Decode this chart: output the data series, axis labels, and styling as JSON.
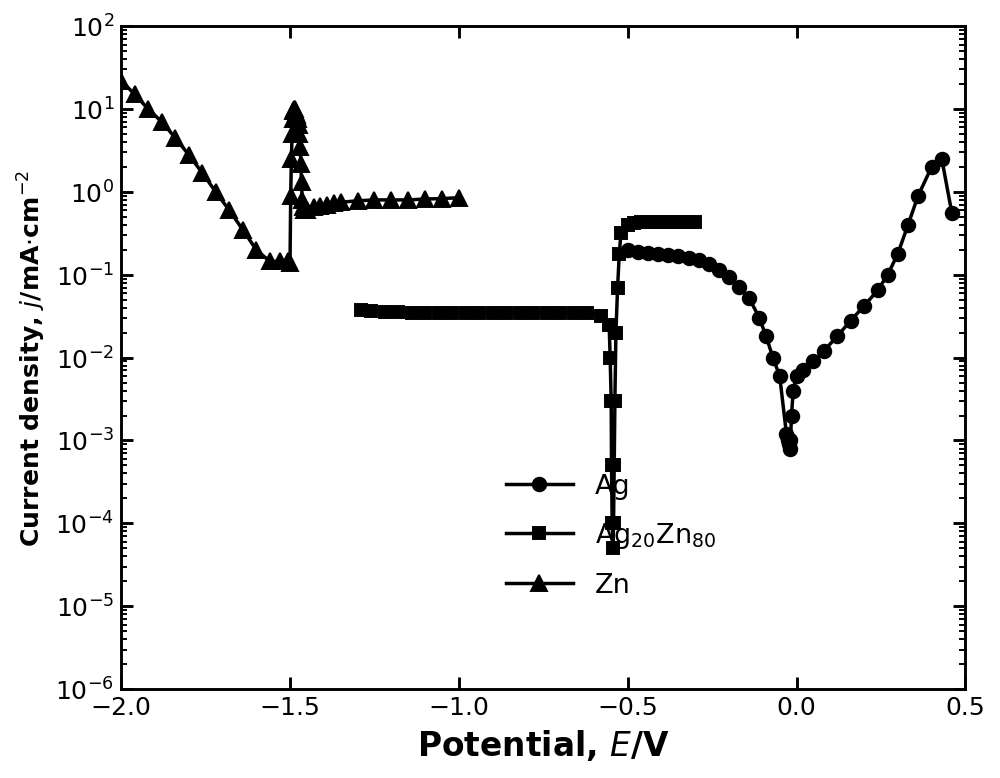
{
  "xlabel": "Potential, $\\bm{E}$/V",
  "ylabel": "Current density, $j$/mA·cm$^{-2}$",
  "xlim": [
    -2.0,
    0.5
  ],
  "ylim_log": [
    1e-06,
    100.0
  ],
  "xticks": [
    -2.0,
    -1.5,
    -1.0,
    -0.5,
    0.0,
    0.5
  ],
  "Ag_x": [
    -0.5,
    -0.47,
    -0.44,
    -0.41,
    -0.38,
    -0.35,
    -0.32,
    -0.29,
    -0.26,
    -0.23,
    -0.2,
    -0.17,
    -0.14,
    -0.11,
    -0.09,
    -0.07,
    -0.05,
    -0.03,
    -0.025,
    -0.022,
    -0.02,
    -0.018,
    -0.015,
    -0.01,
    0.0,
    0.02,
    0.05,
    0.08,
    0.12,
    0.16,
    0.2,
    0.24,
    0.27,
    0.3,
    0.33,
    0.36,
    0.4,
    0.43,
    0.46
  ],
  "Ag_y": [
    0.2,
    0.19,
    0.185,
    0.18,
    0.175,
    0.17,
    0.16,
    0.15,
    0.135,
    0.115,
    0.095,
    0.072,
    0.052,
    0.03,
    0.018,
    0.01,
    0.006,
    0.0012,
    0.001,
    0.0009,
    0.0008,
    0.001,
    0.002,
    0.004,
    0.006,
    0.007,
    0.009,
    0.012,
    0.018,
    0.028,
    0.042,
    0.065,
    0.1,
    0.18,
    0.4,
    0.9,
    2.0,
    2.5,
    0.55
  ],
  "AgZn_x": [
    -1.29,
    -1.26,
    -1.22,
    -1.18,
    -1.14,
    -1.1,
    -1.06,
    -1.02,
    -0.98,
    -0.94,
    -0.9,
    -0.86,
    -0.82,
    -0.78,
    -0.74,
    -0.7,
    -0.66,
    -0.62,
    -0.58,
    -0.555,
    -0.552,
    -0.549,
    -0.548,
    -0.546,
    -0.544,
    -0.542,
    -0.54,
    -0.538,
    -0.535,
    -0.53,
    -0.525,
    -0.52,
    -0.5,
    -0.48,
    -0.46,
    -0.44,
    -0.42,
    -0.4,
    -0.38,
    -0.36,
    -0.34,
    -0.32,
    -0.3
  ],
  "AgZn_y": [
    0.038,
    0.037,
    0.036,
    0.036,
    0.035,
    0.035,
    0.035,
    0.035,
    0.035,
    0.035,
    0.035,
    0.035,
    0.035,
    0.035,
    0.035,
    0.035,
    0.035,
    0.035,
    0.032,
    0.025,
    0.01,
    0.003,
    0.0005,
    0.0001,
    5e-05,
    0.0001,
    0.0005,
    0.003,
    0.02,
    0.07,
    0.18,
    0.32,
    0.4,
    0.42,
    0.43,
    0.43,
    0.43,
    0.43,
    0.43,
    0.43,
    0.43,
    0.43,
    0.43
  ],
  "Zn_x": [
    -2.0,
    -1.96,
    -1.92,
    -1.88,
    -1.84,
    -1.8,
    -1.76,
    -1.72,
    -1.68,
    -1.64,
    -1.6,
    -1.56,
    -1.53,
    -1.505,
    -1.5,
    -1.498,
    -1.496,
    -1.494,
    -1.492,
    -1.49,
    -1.488,
    -1.486,
    -1.484,
    -1.482,
    -1.48,
    -1.478,
    -1.476,
    -1.474,
    -1.472,
    -1.47,
    -1.468,
    -1.466,
    -1.464,
    -1.462,
    -1.46,
    -1.45,
    -1.43,
    -1.41,
    -1.39,
    -1.37,
    -1.35,
    -1.3,
    -1.25,
    -1.2,
    -1.15,
    -1.1,
    -1.05,
    -1.0
  ],
  "Zn_y": [
    22.0,
    15.0,
    10.0,
    7.0,
    4.5,
    2.8,
    1.7,
    1.0,
    0.6,
    0.35,
    0.2,
    0.145,
    0.145,
    0.145,
    0.14,
    0.9,
    2.5,
    5.0,
    7.5,
    9.5,
    10.0,
    10.0,
    9.5,
    9.0,
    8.5,
    8.0,
    7.5,
    6.5,
    5.0,
    3.5,
    2.2,
    1.3,
    0.8,
    0.65,
    0.6,
    0.6,
    0.65,
    0.68,
    0.7,
    0.73,
    0.75,
    0.78,
    0.8,
    0.8,
    0.8,
    0.82,
    0.83,
    0.85
  ],
  "color": "black",
  "linewidth": 1.8,
  "markersize_circle": 7,
  "markersize_square": 6,
  "markersize_triangle": 8,
  "figwidth": 7.2,
  "figheight": 5.6,
  "dpi": 139
}
